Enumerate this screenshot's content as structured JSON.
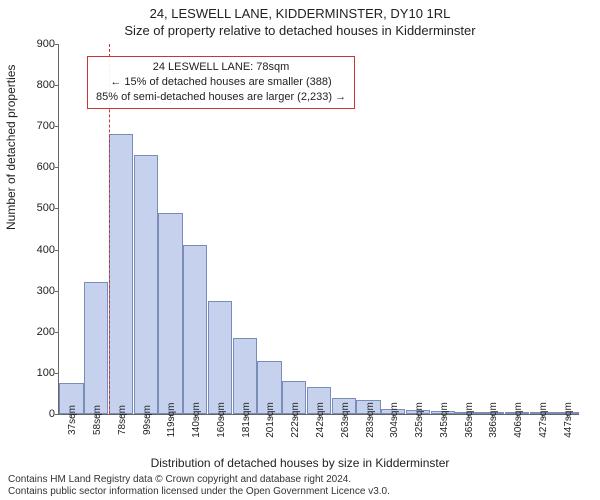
{
  "title": "24, LESWELL LANE, KIDDERMINSTER, DY10 1RL",
  "subtitle": "Size of property relative to detached houses in Kidderminster",
  "y_axis_label": "Number of detached properties",
  "x_axis_label": "Distribution of detached houses by size in Kidderminster",
  "footer_line1": "Contains HM Land Registry data © Crown copyright and database right 2024.",
  "footer_line2": "Contains public sector information licensed under the Open Government Licence v3.0.",
  "chart": {
    "type": "histogram",
    "ylim": [
      0,
      900
    ],
    "yticks": [
      0,
      100,
      200,
      300,
      400,
      500,
      600,
      700,
      800,
      900
    ],
    "x_categories": [
      "37sqm",
      "58sqm",
      "78sqm",
      "99sqm",
      "119sqm",
      "140sqm",
      "160sqm",
      "181sqm",
      "201sqm",
      "222sqm",
      "242sqm",
      "263sqm",
      "283sqm",
      "304sqm",
      "325sqm",
      "345sqm",
      "365sqm",
      "386sqm",
      "406sqm",
      "427sqm",
      "447sqm"
    ],
    "values": [
      75,
      320,
      680,
      630,
      490,
      410,
      275,
      185,
      130,
      80,
      65,
      40,
      35,
      12,
      10,
      8,
      6,
      4,
      3,
      2,
      2
    ],
    "bar_fill": "#c5d1ed",
    "bar_stroke": "#7a8db8",
    "background_color": "#ffffff",
    "axis_color": "#666666",
    "reference_line": {
      "position_index": 2,
      "color": "#cc3333",
      "dash": "2,2"
    },
    "annotation": {
      "line1": "24 LESWELL LANE: 78sqm",
      "line2": "← 15% of detached houses are smaller (388)",
      "line3": "85% of semi-detached houses are larger (2,233) →",
      "border_color": "#cc3333"
    }
  }
}
